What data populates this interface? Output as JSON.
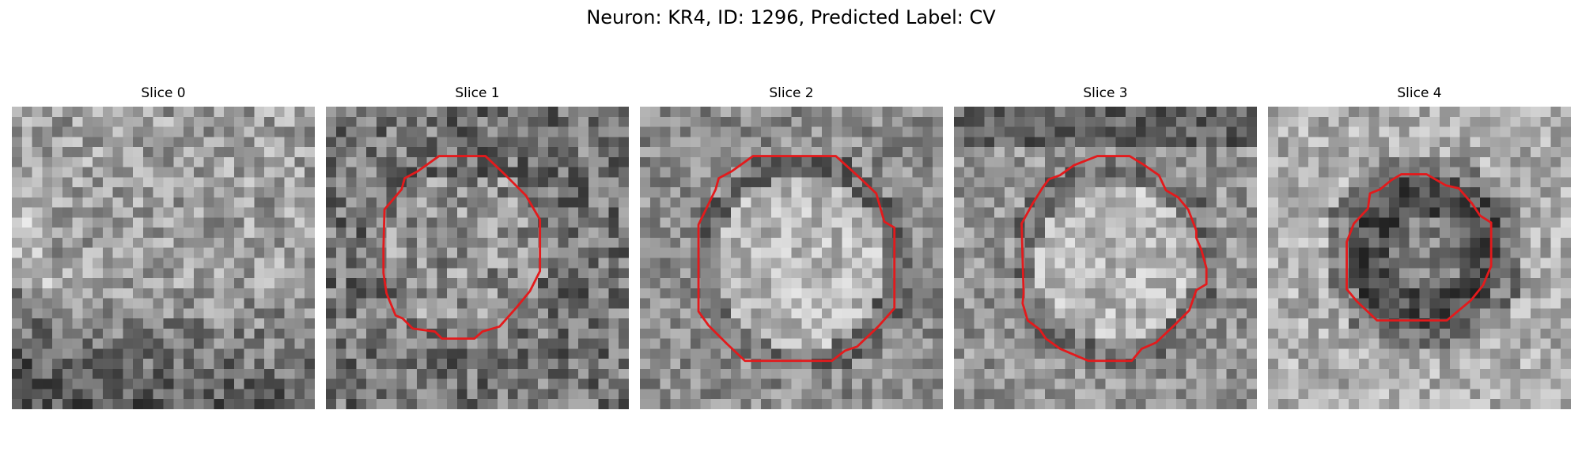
{
  "figure": {
    "title": "Neuron: KR4, ID: 1296, Predicted Label: CV"
  },
  "colors": {
    "background": "#ffffff",
    "roi_outline": "#e31a1c",
    "colormap": "grayscale"
  },
  "panels": [
    {
      "title": "Slice 0",
      "has_roi_outline": false,
      "roi_outline_icon": "none"
    },
    {
      "title": "Slice 1",
      "has_roi_outline": true,
      "roi_outline_icon": "red-octagon-outline"
    },
    {
      "title": "Slice 2",
      "has_roi_outline": true,
      "roi_outline_icon": "red-octagon-outline"
    },
    {
      "title": "Slice 3",
      "has_roi_outline": true,
      "roi_outline_icon": "red-octagon-outline"
    },
    {
      "title": "Slice 4",
      "has_roi_outline": true,
      "roi_outline_icon": "red-octagon-outline"
    }
  ]
}
